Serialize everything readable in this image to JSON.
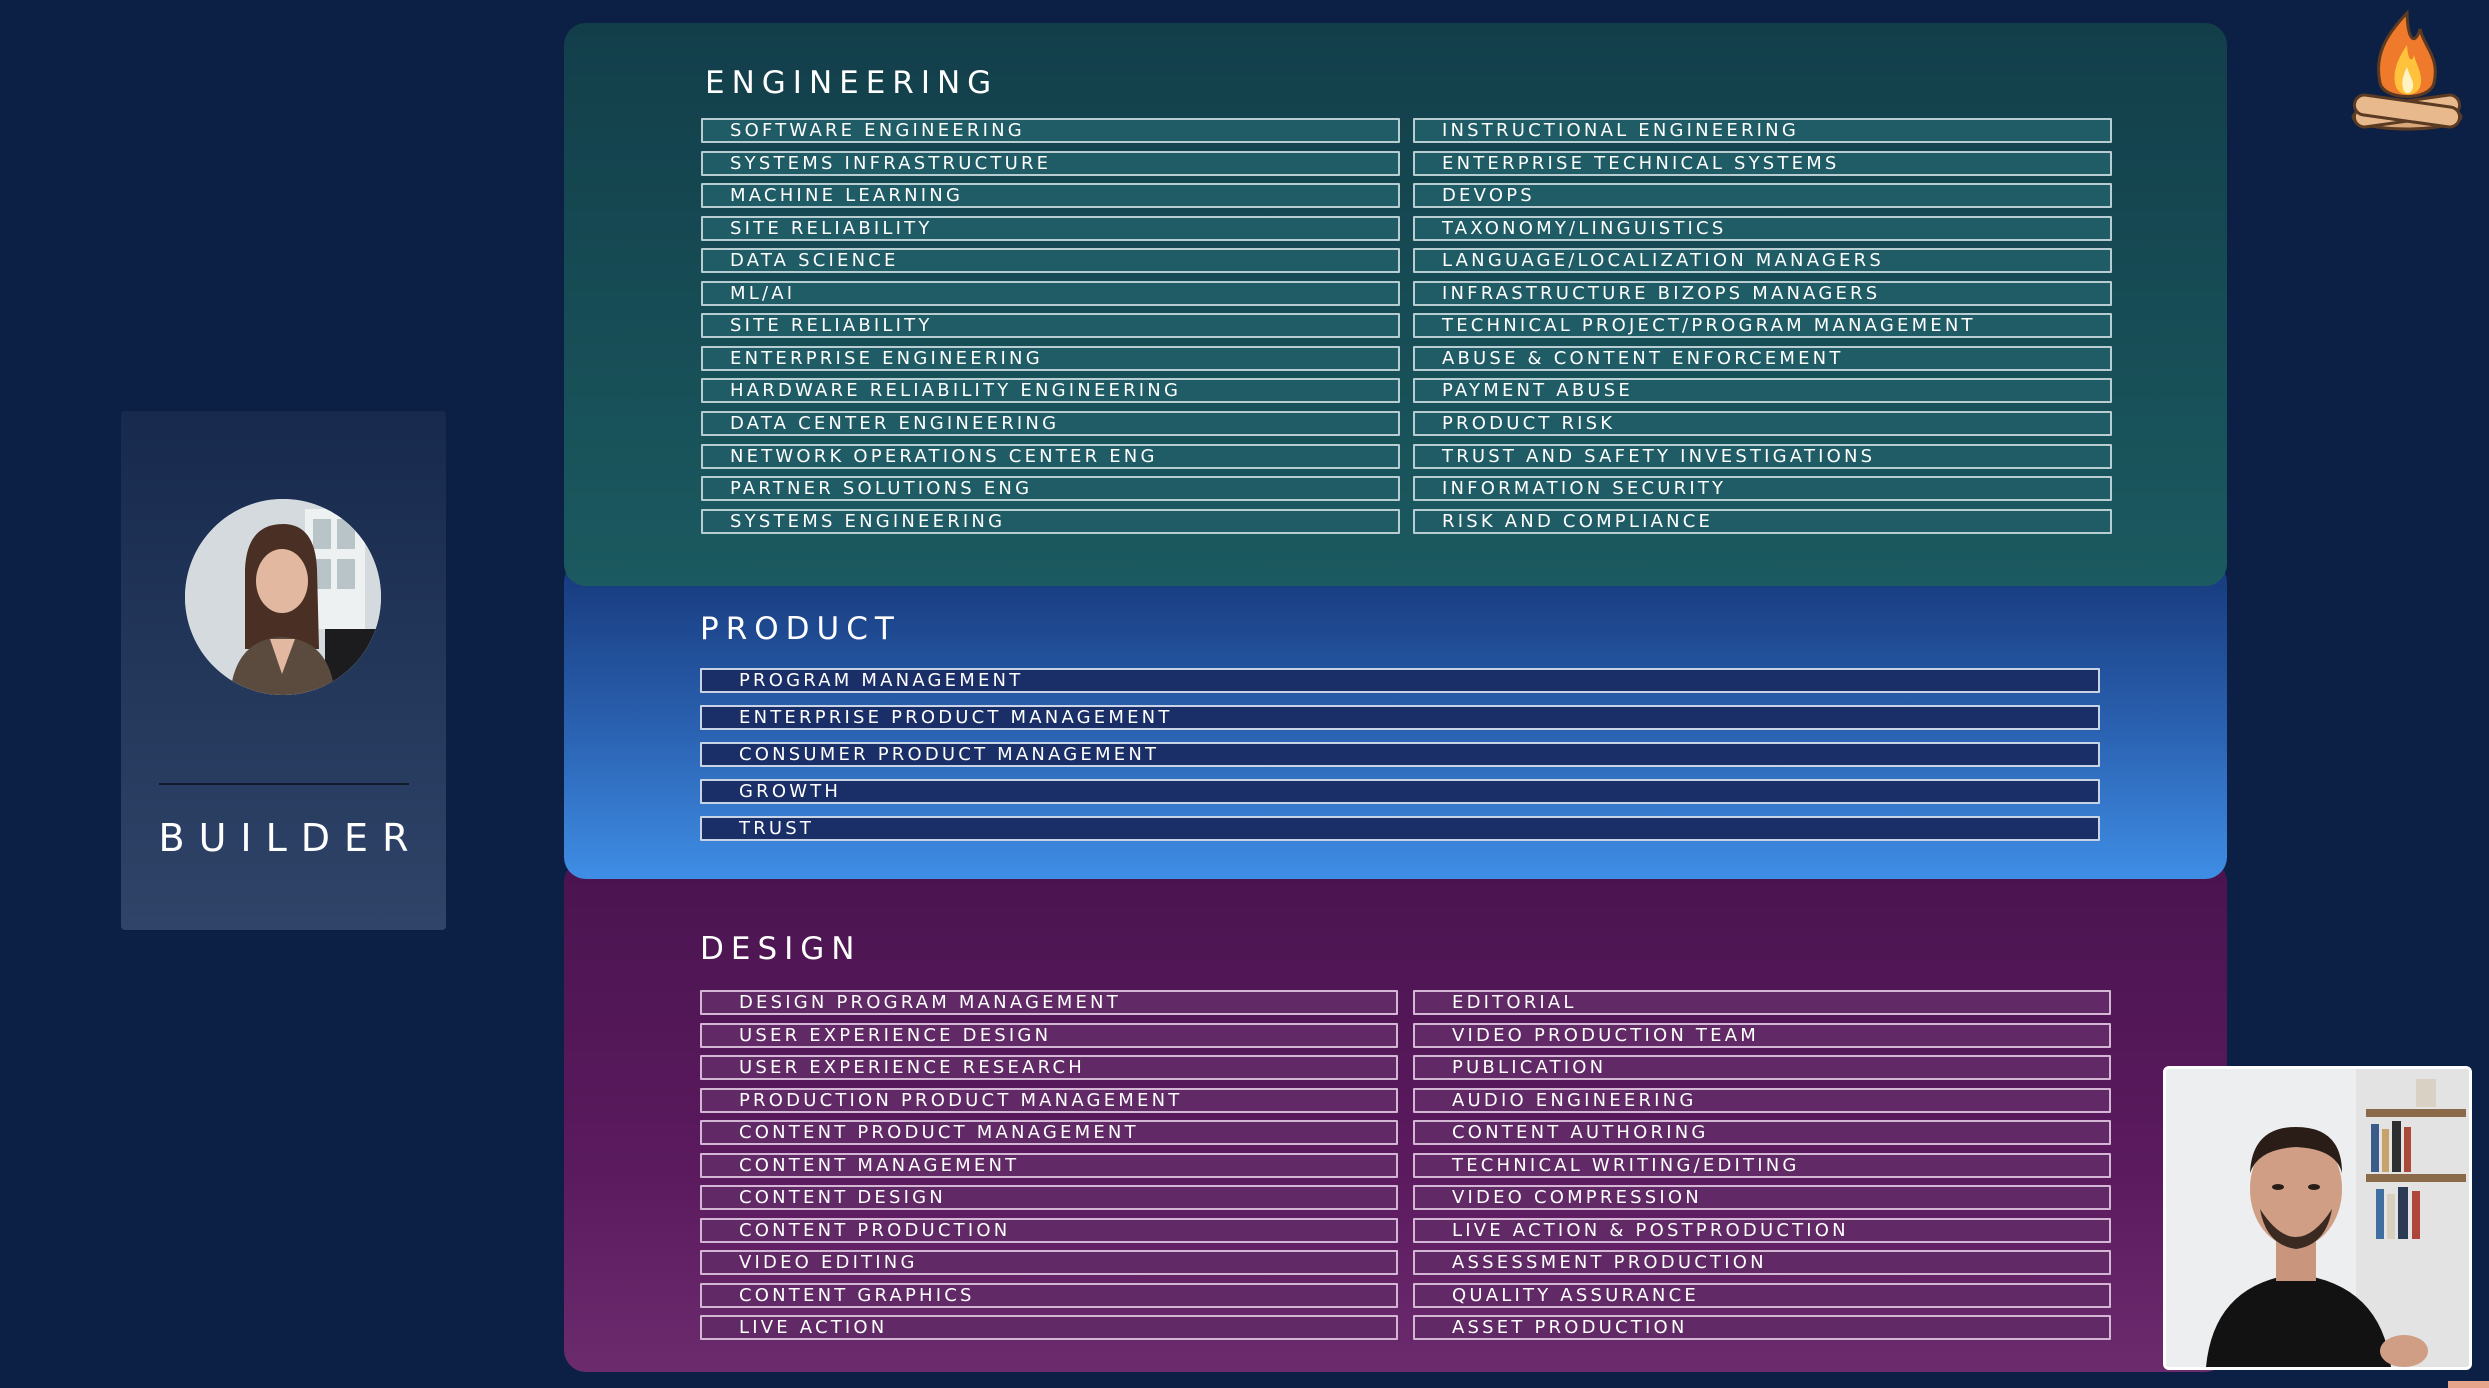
{
  "builder": {
    "label": "BUILDER"
  },
  "engineering": {
    "title": "ENGINEERING",
    "left": [
      "SOFTWARE ENGINEERING",
      "SYSTEMS INFRASTRUCTURE",
      "MACHINE LEARNING",
      "SITE RELIABILITY",
      "DATA SCIENCE",
      "ML/AI",
      "SITE RELIABILITY",
      "ENTERPRISE ENGINEERING",
      "HARDWARE RELIABILITY ENGINEERING",
      "DATA CENTER ENGINEERING",
      "NETWORK OPERATIONS CENTER ENG",
      "PARTNER SOLUTIONS ENG",
      "SYSTEMS ENGINEERING"
    ],
    "right": [
      "INSTRUCTIONAL ENGINEERING",
      "ENTERPRISE TECHNICAL SYSTEMS",
      "DEVOPS",
      "TAXONOMY/LINGUISTICS",
      "LANGUAGE/LOCALIZATION MANAGERS",
      "INFRASTRUCTURE BIZOPS MANAGERS",
      "TECHNICAL PROJECT/PROGRAM MANAGEMENT",
      "ABUSE & CONTENT ENFORCEMENT",
      "PAYMENT ABUSE",
      "PRODUCT RISK",
      "TRUST AND SAFETY INVESTIGATIONS",
      "INFORMATION SECURITY",
      "RISK AND COMPLIANCE"
    ]
  },
  "product": {
    "title": "PRODUCT",
    "items": [
      "PROGRAM MANAGEMENT",
      "ENTERPRISE PRODUCT MANAGEMENT",
      "CONSUMER PRODUCT MANAGEMENT",
      "GROWTH",
      "TRUST"
    ]
  },
  "design": {
    "title": "DESIGN",
    "left": [
      "DESIGN PROGRAM MANAGEMENT",
      "USER EXPERIENCE DESIGN",
      "USER EXPERIENCE RESEARCH",
      "PRODUCTION PRODUCT MANAGEMENT",
      "CONTENT PRODUCT MANAGEMENT",
      "CONTENT MANAGEMENT",
      "CONTENT DESIGN",
      "CONTENT PRODUCTION",
      "VIDEO EDITING",
      "CONTENT GRAPHICS",
      "LIVE ACTION"
    ],
    "right": [
      "EDITORIAL",
      "VIDEO PRODUCTION TEAM",
      "PUBLICATION",
      "AUDIO ENGINEERING",
      "CONTENT AUTHORING",
      "TECHNICAL WRITING/EDITING",
      "VIDEO COMPRESSION",
      "LIVE ACTION & POSTPRODUCTION",
      "ASSESSMENT PRODUCTION",
      "QUALITY ASSURANCE",
      "ASSET PRODUCTION"
    ]
  },
  "colors": {
    "background": "#0c1f45",
    "engineering_panel": "#1b5a60",
    "product_panel": "#2b63b3",
    "design_panel": "#5b1a5e"
  },
  "icons": {
    "logo": "campfire-logo-icon",
    "video": "presenter-video-thumbnail"
  }
}
